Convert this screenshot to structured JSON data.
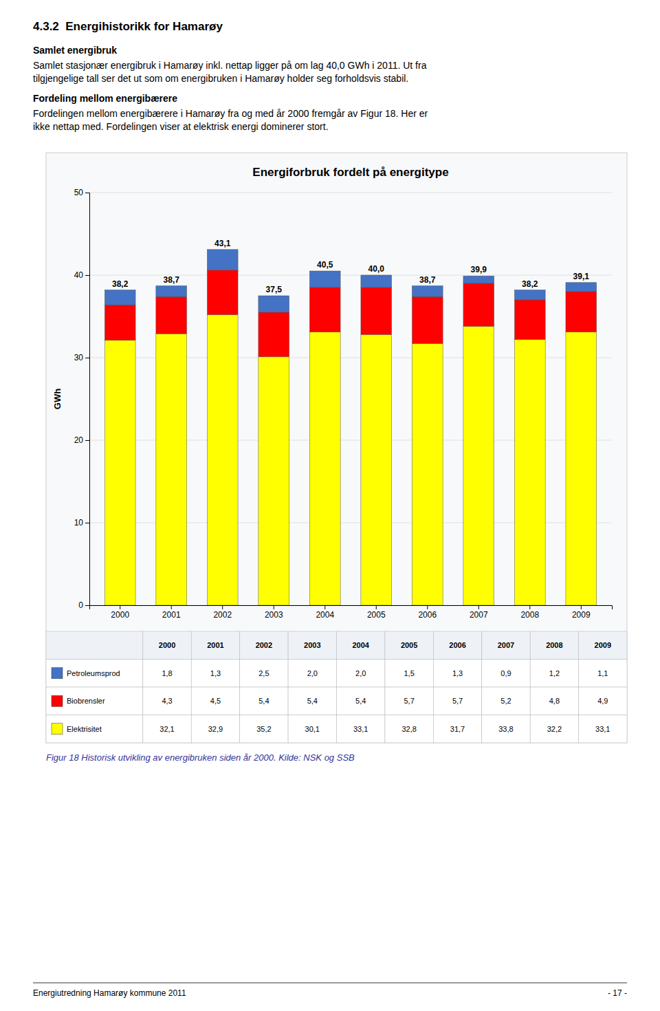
{
  "page_title": "4.3.2  Energihistorikk for Hamarøy",
  "sections": [
    {
      "heading": "Samlet energibruk",
      "lines": [
        "Samlet stasjonær energibruk i Hamarøy inkl. nettap ligger på om lag 40,0 GWh i 2011. Ut fra",
        "tilgjengelige tall ser det ut som om energibruken i Hamarøy holder seg forholdsvis stabil."
      ]
    },
    {
      "heading": "Fordeling mellom energibærere",
      "lines": [
        "Fordelingen mellom energibærere i Hamarøy fra og med år 2000 fremgår av Figur 18. Her er",
        "ikke nettap med. Fordelingen viser at elektrisk energi dominerer stort."
      ]
    }
  ],
  "chart_data": {
    "type": "bar",
    "stacked": true,
    "title": "Energiforbruk fordelt på energitype",
    "y_label": "GWh",
    "categories": [
      "2000",
      "2001",
      "2002",
      "2003",
      "2004",
      "2005",
      "2006",
      "2007",
      "2008",
      "2009"
    ],
    "series": [
      {
        "name": "Elektrisitet",
        "color": "#FFFF00",
        "values": [
          32.1,
          32.9,
          35.2,
          30.1,
          33.1,
          32.8,
          31.7,
          33.8,
          32.2,
          33.1
        ],
        "value_labels": [
          "32,1",
          "32,9",
          "35,2",
          "30,1",
          "33,1",
          "32,8",
          "31,7",
          "33,8",
          "32,2",
          "33,1"
        ]
      },
      {
        "name": "Biobrensler",
        "color": "#FF0000",
        "values": [
          4.3,
          4.5,
          5.4,
          5.4,
          5.4,
          5.7,
          5.7,
          5.2,
          4.8,
          4.9
        ],
        "value_labels": [
          "4,3",
          "4,5",
          "5,4",
          "5,4",
          "5,4",
          "5,7",
          "5,7",
          "5,2",
          "4,8",
          "4,9"
        ]
      },
      {
        "name": "Petroleumsprod",
        "color": "#4472C4",
        "values": [
          1.8,
          1.3,
          2.5,
          2.0,
          2.0,
          1.5,
          1.3,
          0.9,
          1.2,
          1.1
        ],
        "value_labels": [
          "1,8",
          "1,3",
          "2,5",
          "2,0",
          "2,0",
          "1,5",
          "1,3",
          "0,9",
          "1,2",
          "1,1"
        ]
      }
    ],
    "totals": [
      38.2,
      38.7,
      43.1,
      37.5,
      40.5,
      40.0,
      38.7,
      39.9,
      38.2,
      39.1
    ],
    "total_labels": [
      "38,2",
      "38,7",
      "43,1",
      "37,5",
      "40,5",
      "40,0",
      "38,7",
      "39,9",
      "38,2",
      "39,1"
    ],
    "ylim": [
      0,
      50
    ],
    "yticks": [
      0,
      10,
      20,
      30,
      40,
      50
    ],
    "grid": true
  },
  "caption": "Figur 18 Historisk utvikling av energibruken siden år 2000. Kilde: NSK og SSB",
  "footer_left": "Energiutredning Hamarøy kommune 2011",
  "footer_right": "- 17 -"
}
